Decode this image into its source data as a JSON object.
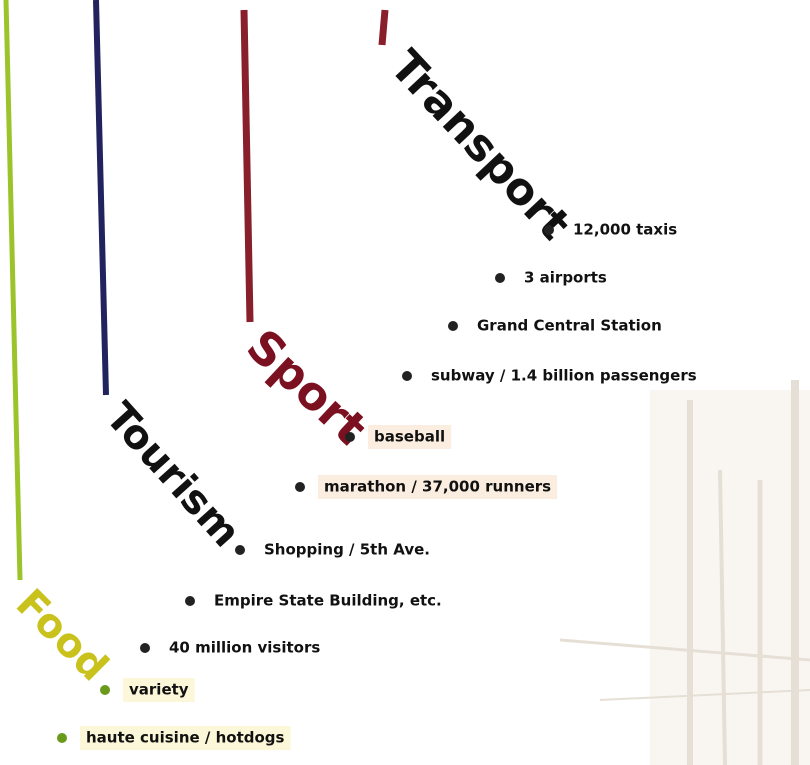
{
  "branches": [
    {
      "label": "Transport",
      "items": [
        "12,000 taxis",
        "3 airports",
        "Grand Central Station",
        "subway / 1.4 billion passengers"
      ]
    },
    {
      "label": "Sport",
      "items": [
        "baseball",
        "marathon / 37,000 runners"
      ]
    },
    {
      "label": "Tourism",
      "items": [
        "Shopping / 5th Ave.",
        "Empire State Building, etc.",
        "40 million visitors"
      ]
    },
    {
      "label": "Food",
      "items": [
        "variety",
        "haute cuisine / hotdogs"
      ]
    }
  ]
}
